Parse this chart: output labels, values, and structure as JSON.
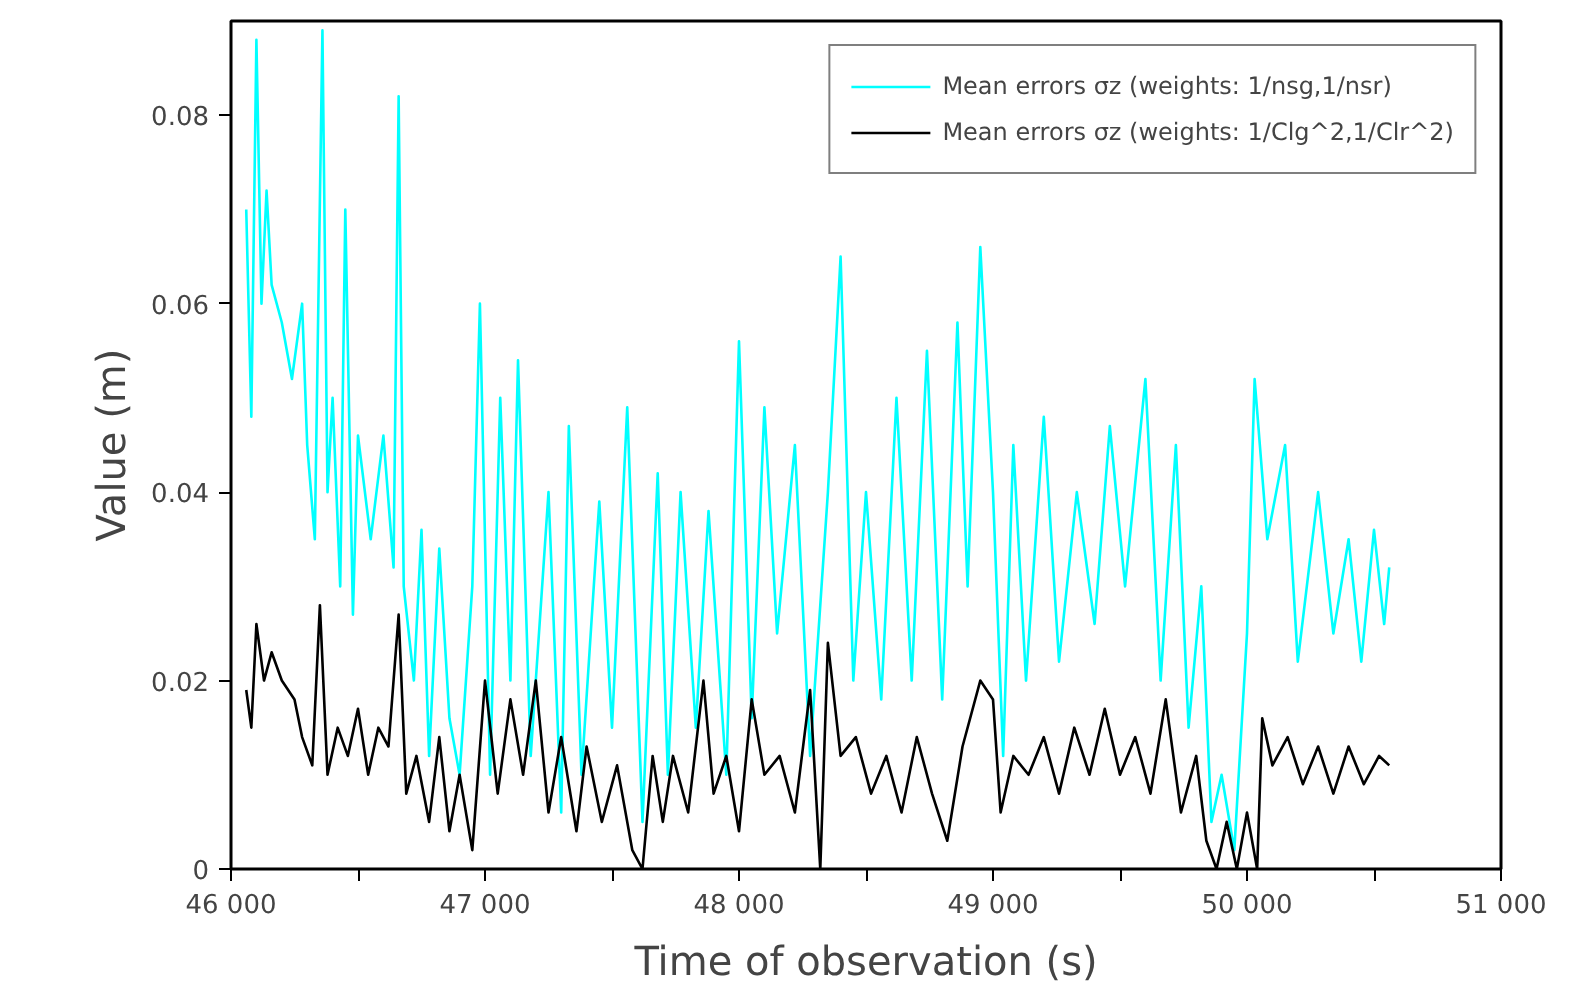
{
  "chart_data": {
    "type": "line",
    "xlabel": "Time of observation (s)",
    "ylabel": "Value (m)",
    "xlim": [
      46000,
      51000
    ],
    "ylim": [
      0,
      0.09
    ],
    "xticks": [
      {
        "value": 46000,
        "label": "46 000"
      },
      {
        "value": 46500,
        "label": null
      },
      {
        "value": 47000,
        "label": "47 000"
      },
      {
        "value": 47500,
        "label": null
      },
      {
        "value": 48000,
        "label": "48 000"
      },
      {
        "value": 48500,
        "label": null
      },
      {
        "value": 49000,
        "label": "49 000"
      },
      {
        "value": 49500,
        "label": null
      },
      {
        "value": 50000,
        "label": "50 000"
      },
      {
        "value": 50500,
        "label": null
      },
      {
        "value": 51000,
        "label": "51 000"
      }
    ],
    "yticks": [
      0,
      0.02,
      0.04,
      0.06,
      0.08
    ],
    "grid": false,
    "legend": "top right",
    "line_style": "solid",
    "marker": "none",
    "series": [
      {
        "name": "Mean errors σz (weights: 1/nsg,1/nsr)",
        "color": "#00ffff",
        "x": [
          46060,
          46080,
          46100,
          46120,
          46140,
          46160,
          46200,
          46240,
          46280,
          46300,
          46330,
          46360,
          46380,
          46400,
          46430,
          46450,
          46480,
          46500,
          46550,
          46600,
          46640,
          46660,
          46680,
          46720,
          46750,
          46780,
          46820,
          46860,
          46900,
          46950,
          46980,
          47020,
          47060,
          47100,
          47130,
          47180,
          47250,
          47300,
          47330,
          47380,
          47450,
          47500,
          47560,
          47620,
          47680,
          47720,
          47770,
          47830,
          47880,
          47950,
          48000,
          48050,
          48100,
          48150,
          48220,
          48280,
          48350,
          48400,
          48450,
          48500,
          48560,
          48620,
          48680,
          48740,
          48800,
          48860,
          48900,
          48950,
          49000,
          49040,
          49080,
          49130,
          49200,
          49260,
          49330,
          49400,
          49460,
          49520,
          49600,
          49660,
          49720,
          49770,
          49820,
          49860,
          49900,
          49950,
          50000,
          50030,
          50080,
          50150,
          50200,
          50280,
          50340,
          50400,
          50450,
          50500,
          50540,
          50560
        ],
        "values": [
          0.07,
          0.048,
          0.088,
          0.06,
          0.072,
          0.062,
          0.058,
          0.052,
          0.06,
          0.045,
          0.035,
          0.089,
          0.04,
          0.05,
          0.03,
          0.07,
          0.027,
          0.046,
          0.035,
          0.046,
          0.032,
          0.082,
          0.03,
          0.02,
          0.036,
          0.012,
          0.034,
          0.016,
          0.01,
          0.03,
          0.06,
          0.01,
          0.05,
          0.02,
          0.054,
          0.012,
          0.04,
          0.006,
          0.047,
          0.01,
          0.039,
          0.015,
          0.049,
          0.005,
          0.042,
          0.01,
          0.04,
          0.015,
          0.038,
          0.01,
          0.056,
          0.016,
          0.049,
          0.025,
          0.045,
          0.012,
          0.04,
          0.065,
          0.02,
          0.04,
          0.018,
          0.05,
          0.02,
          0.055,
          0.018,
          0.058,
          0.03,
          0.066,
          0.04,
          0.012,
          0.045,
          0.02,
          0.048,
          0.022,
          0.04,
          0.026,
          0.047,
          0.03,
          0.052,
          0.02,
          0.045,
          0.015,
          0.03,
          0.005,
          0.01,
          0.002,
          0.025,
          0.052,
          0.035,
          0.045,
          0.022,
          0.04,
          0.025,
          0.035,
          0.022,
          0.036,
          0.026,
          0.032
        ]
      },
      {
        "name": "Mean errors σz (weights: 1/Clg^2,1/Clr^2)",
        "color": "#000000",
        "x": [
          46060,
          46080,
          46100,
          46130,
          46160,
          46200,
          46250,
          46280,
          46320,
          46350,
          46380,
          46420,
          46460,
          46500,
          46540,
          46580,
          46620,
          46660,
          46690,
          46730,
          46780,
          46820,
          46860,
          46900,
          46950,
          47000,
          47050,
          47100,
          47150,
          47200,
          47250,
          47300,
          47360,
          47400,
          47460,
          47520,
          47580,
          47620,
          47660,
          47700,
          47740,
          47800,
          47860,
          47900,
          47950,
          48000,
          48050,
          48100,
          48160,
          48220,
          48280,
          48320,
          48350,
          48400,
          48460,
          48520,
          48580,
          48640,
          48700,
          48760,
          48820,
          48880,
          48950,
          49000,
          49030,
          49080,
          49140,
          49200,
          49260,
          49320,
          49380,
          49440,
          49500,
          49560,
          49620,
          49680,
          49740,
          49800,
          49840,
          49880,
          49920,
          49960,
          50000,
          50040,
          50060,
          50100,
          50160,
          50220,
          50280,
          50340,
          50400,
          50460,
          50520,
          50560
        ],
        "values": [
          0.019,
          0.015,
          0.026,
          0.02,
          0.023,
          0.02,
          0.018,
          0.014,
          0.011,
          0.028,
          0.01,
          0.015,
          0.012,
          0.017,
          0.01,
          0.015,
          0.013,
          0.027,
          0.008,
          0.012,
          0.005,
          0.014,
          0.004,
          0.01,
          0.002,
          0.02,
          0.008,
          0.018,
          0.01,
          0.02,
          0.006,
          0.014,
          0.004,
          0.013,
          0.005,
          0.011,
          0.002,
          0.0,
          0.012,
          0.005,
          0.012,
          0.006,
          0.02,
          0.008,
          0.012,
          0.004,
          0.018,
          0.01,
          0.012,
          0.006,
          0.019,
          0.0,
          0.024,
          0.012,
          0.014,
          0.008,
          0.012,
          0.006,
          0.014,
          0.008,
          0.003,
          0.013,
          0.02,
          0.018,
          0.006,
          0.012,
          0.01,
          0.014,
          0.008,
          0.015,
          0.01,
          0.017,
          0.01,
          0.014,
          0.008,
          0.018,
          0.006,
          0.012,
          0.003,
          0.0,
          0.005,
          0.0,
          0.006,
          0.0,
          0.016,
          0.011,
          0.014,
          0.009,
          0.013,
          0.008,
          0.013,
          0.009,
          0.012,
          0.011
        ]
      }
    ]
  }
}
